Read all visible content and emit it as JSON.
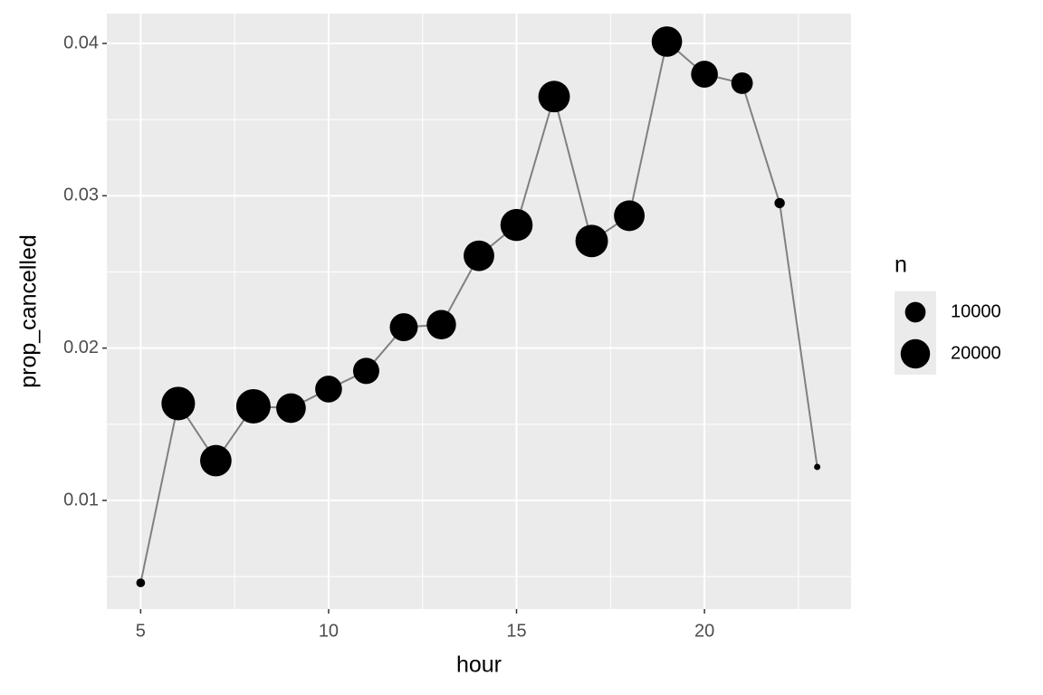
{
  "chart_data": {
    "type": "scatter",
    "x_label": "hour",
    "y_label": "prop_cancelled",
    "x": [
      5,
      6,
      7,
      8,
      9,
      10,
      11,
      12,
      13,
      14,
      15,
      16,
      17,
      18,
      19,
      20,
      21,
      22,
      23
    ],
    "series": [
      {
        "name": "prop_cancelled",
        "color": "#000000",
        "line_color": "#808080",
        "values": [
          0.00459,
          0.01636,
          0.01261,
          0.01618,
          0.01606,
          0.01731,
          0.0185,
          0.02137,
          0.02154,
          0.02606,
          0.02808,
          0.03651,
          0.02703,
          0.02869,
          0.04012,
          0.03798,
          0.03739,
          0.02952,
          0.0122
        ],
        "sizes": [
          1953,
          25951,
          22821,
          27242,
          20312,
          16708,
          16033,
          18181,
          19956,
          21706,
          23888,
          23002,
          24426,
          21783,
          21441,
          16739,
          10933,
          2639,
          1061
        ]
      }
    ],
    "size_legend": {
      "title": "n",
      "values": [
        10000,
        20000
      ]
    },
    "xlim": [
      4.1,
      23.9
    ],
    "xticks": [
      5,
      10,
      15,
      20
    ],
    "ylim": [
      0.00287,
      0.04196
    ],
    "yticks": [
      0.01,
      0.02,
      0.03,
      0.04
    ],
    "grid": true
  }
}
